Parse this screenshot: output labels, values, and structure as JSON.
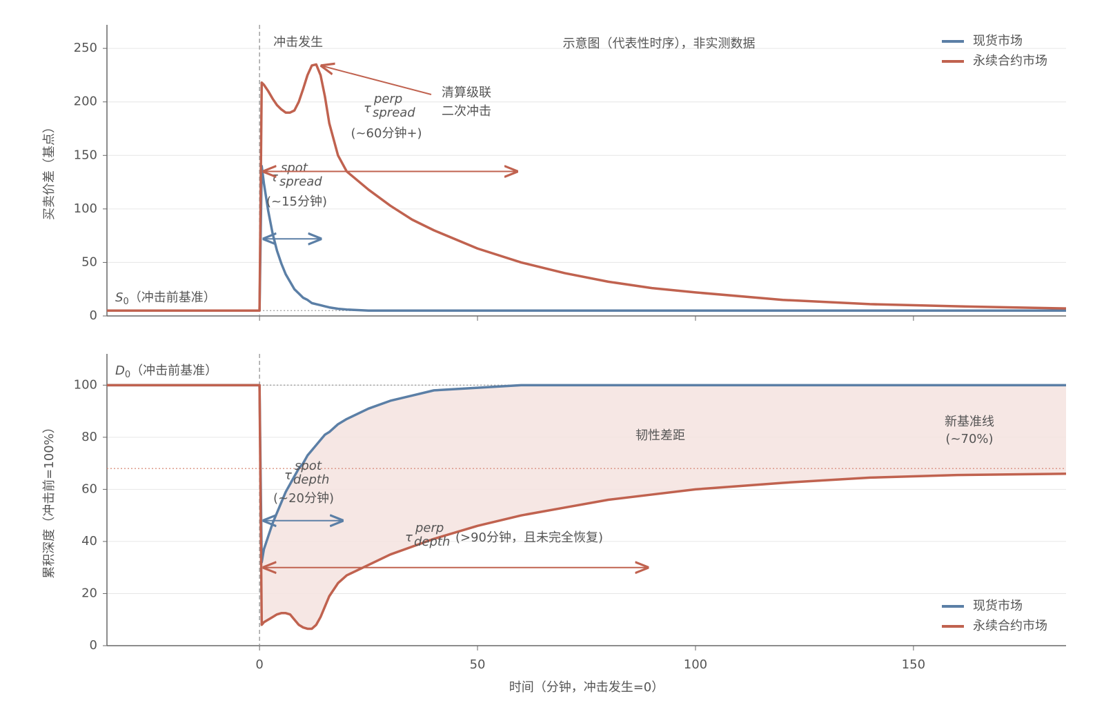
{
  "chart_data": [
    {
      "type": "line",
      "subtitle": "示意图（代表性时序），非实测数据",
      "ylabel": "买卖价差（基点）",
      "shock_label": "冲击发生",
      "shock_x": 0,
      "x": [
        -35,
        0,
        0.5,
        1,
        2,
        3,
        4,
        5,
        6,
        7,
        8,
        9,
        10,
        11,
        12,
        13,
        14,
        15,
        16,
        18,
        20,
        25,
        30,
        35,
        40,
        50,
        60,
        70,
        80,
        90,
        100,
        120,
        140,
        160,
        185
      ],
      "series": [
        {
          "name": "现货市场",
          "color": "#5b7fa6",
          "values": [
            5,
            5,
            140,
            124,
            98,
            77,
            61,
            49,
            39,
            32,
            25,
            21,
            17,
            15,
            12,
            11,
            10,
            9,
            8,
            6.7,
            6,
            5,
            5,
            5,
            5,
            5,
            5,
            5,
            5,
            5,
            5,
            5,
            5,
            5,
            5
          ]
        },
        {
          "name": "永续合约市场",
          "color": "#c0624f",
          "values": [
            5,
            5,
            218,
            216,
            210,
            203,
            197,
            193,
            190,
            190,
            192,
            200,
            212,
            225,
            234,
            235,
            225,
            205,
            180,
            150,
            135,
            118,
            103,
            90,
            80,
            63,
            50,
            40,
            32,
            26,
            22,
            15,
            11,
            9,
            7
          ]
        }
      ],
      "xlim": [
        -35,
        185
      ],
      "ylim": [
        0,
        272
      ],
      "yticks": [
        0,
        50,
        100,
        150,
        200,
        250
      ],
      "grid": true,
      "legend": "upper right",
      "reference_lines": [
        {
          "value": 5,
          "color": "#999999",
          "span": "after-shock"
        }
      ],
      "baseline_label": {
        "symbol": "S",
        "sub": "0",
        "text": "（冲击前基准）"
      },
      "taus": [
        {
          "symbol": "τ",
          "sup": "spot",
          "sub": "spread",
          "note": "(~15分钟)",
          "color": "#5b7fa6",
          "arrow_x": [
            1,
            14
          ],
          "arrow_y": 72
        },
        {
          "symbol": "τ",
          "sup": "perp",
          "sub": "spread",
          "note": "(~60分钟+)",
          "color": "#c0624f",
          "arrow_x": [
            1,
            59
          ],
          "arrow_y": 135
        }
      ],
      "callout": {
        "lines": [
          "清算级联",
          "二次冲击"
        ],
        "xy": [
          13,
          235
        ],
        "color": "#c0624f"
      }
    },
    {
      "type": "line",
      "ylabel": "累积深度（冲击前=100%）",
      "xlabel": "时间（分钟，冲击发生=0）",
      "shock_x": 0,
      "x": [
        -35,
        0,
        0.5,
        1,
        2,
        3,
        4,
        5,
        6,
        7,
        8,
        9,
        10,
        11,
        12,
        13,
        14,
        15,
        16,
        18,
        20,
        25,
        30,
        35,
        40,
        50,
        60,
        70,
        80,
        90,
        100,
        120,
        140,
        160,
        185
      ],
      "series": [
        {
          "name": "现货市场",
          "color": "#5b7fa6",
          "values": [
            100,
            100,
            32,
            37,
            42,
            47,
            51,
            55,
            59,
            62,
            65,
            68,
            70,
            73,
            75,
            77,
            79,
            81,
            82,
            85,
            87,
            91,
            94,
            96,
            98,
            99,
            100,
            100,
            100,
            100,
            100,
            100,
            100,
            100,
            100
          ]
        },
        {
          "name": "永续合约市场",
          "color": "#c0624f",
          "values": [
            100,
            100,
            8,
            9,
            10,
            11,
            12,
            12.5,
            12.5,
            12,
            10,
            8,
            7,
            6.5,
            6.5,
            8,
            11,
            15,
            19,
            24,
            27,
            31,
            35,
            38,
            41,
            46,
            50,
            53,
            56,
            58,
            60,
            62.5,
            64.5,
            65.5,
            66
          ]
        }
      ],
      "xlim": [
        -35,
        185
      ],
      "ylim": [
        0,
        112
      ],
      "xticks": [
        0,
        50,
        100,
        150
      ],
      "yticks": [
        0,
        20,
        40,
        60,
        80,
        100
      ],
      "grid": true,
      "legend": "lower right",
      "fill_color": "#f5e3df",
      "gap_label": "韧性差距",
      "new_baseline": [
        "新基准线",
        "(~70%)"
      ],
      "reference_lines": [
        {
          "value": 100,
          "color": "#999999",
          "span": "after-shock"
        },
        {
          "value": 68,
          "color": "#d9907f",
          "span": "full"
        }
      ],
      "baseline_label": {
        "symbol": "D",
        "sub": "0",
        "text": "（冲击前基准）"
      },
      "taus": [
        {
          "symbol": "τ",
          "sup": "spot",
          "sub": "depth",
          "note": "(~20分钟)",
          "color": "#5b7fa6",
          "arrow_x": [
            1,
            19
          ],
          "arrow_y": 48
        },
        {
          "symbol": "τ",
          "sup": "perp",
          "sub": "depth",
          "note": "(>90分钟，且未完全恢复)",
          "color": "#c0624f",
          "arrow_x": [
            1,
            89
          ],
          "arrow_y": 30
        }
      ]
    }
  ]
}
